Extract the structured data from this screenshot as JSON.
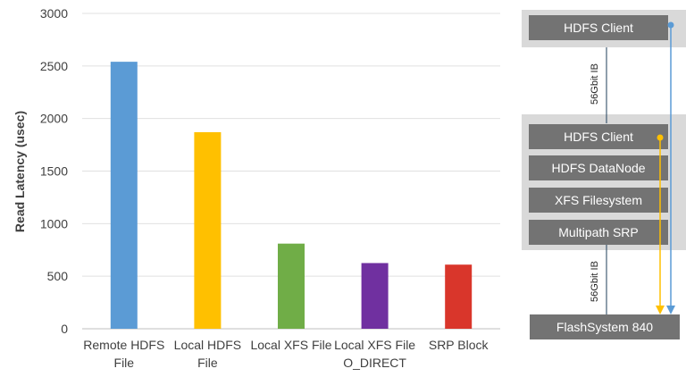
{
  "chart_data": {
    "type": "bar",
    "categories": [
      [
        "Remote HDFS",
        "File"
      ],
      [
        "Local HDFS",
        "File"
      ],
      [
        "Local XFS File"
      ],
      [
        "Local XFS File",
        "O_DIRECT"
      ],
      [
        "SRP Block"
      ]
    ],
    "values": [
      2540,
      1870,
      810,
      625,
      610
    ],
    "colors": [
      "#5b9bd5",
      "#ffc000",
      "#70ad47",
      "#7030a0",
      "#d9362b"
    ],
    "ylabel": "Read Latency (usec)",
    "ylim": [
      0,
      3000
    ],
    "yticks": [
      0,
      500,
      1000,
      1500,
      2000,
      2500,
      3000
    ],
    "grid": true
  },
  "diagram": {
    "top_client": "HDFS Client",
    "link_top": "56Gbit IB",
    "stack": [
      "HDFS Client",
      "HDFS DataNode",
      "XFS Filesystem",
      "Multipath SRP"
    ],
    "link_bottom": "56Gbit IB",
    "storage": "FlashSystem 840",
    "colors": {
      "remote_path": "#5b9bd5",
      "local_path": "#ffc000",
      "box": "#737373",
      "panel": "#d9d9d9"
    }
  }
}
